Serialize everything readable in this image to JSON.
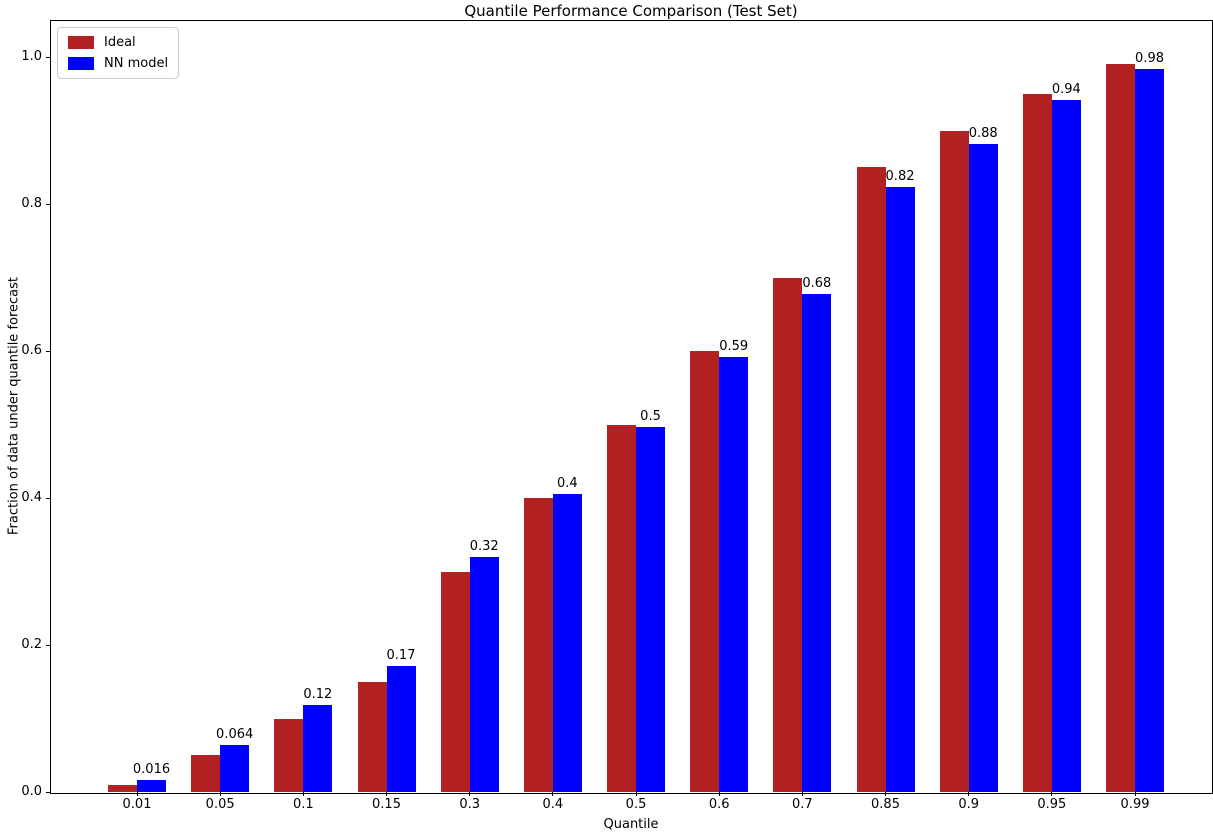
{
  "figure": {
    "title": "Quantile Performance Comparison (Test Set)",
    "xlabel": "Quantile",
    "ylabel": "Fraction of data under quantile forecast"
  },
  "legend": {
    "position": "upper left",
    "entries": [
      {
        "label": "Ideal",
        "color": "#b22222"
      },
      {
        "label": "NN model",
        "color": "#0000ff"
      }
    ]
  },
  "chart_data": {
    "type": "bar",
    "title": "Quantile Performance Comparison (Test Set)",
    "xlabel": "Quantile",
    "ylabel": "Fraction of data under quantile forecast",
    "categories": [
      "0.01",
      "0.05",
      "0.1",
      "0.15",
      "0.3",
      "0.4",
      "0.5",
      "0.6",
      "0.7",
      "0.85",
      "0.9",
      "0.95",
      "0.99"
    ],
    "series": [
      {
        "name": "Ideal",
        "color": "#b22222",
        "values": [
          0.01,
          0.05,
          0.1,
          0.15,
          0.3,
          0.4,
          0.5,
          0.6,
          0.7,
          0.85,
          0.9,
          0.95,
          0.99
        ]
      },
      {
        "name": "NN model",
        "color": "#0000ff",
        "values": [
          0.016,
          0.064,
          0.118,
          0.172,
          0.32,
          0.405,
          0.497,
          0.592,
          0.677,
          0.823,
          0.882,
          0.942,
          0.983
        ],
        "bar_labels": [
          "0.016",
          "0.064",
          "0.12",
          "0.17",
          "0.32",
          "0.4",
          "0.5",
          "0.59",
          "0.68",
          "0.82",
          "0.88",
          "0.94",
          "0.98"
        ]
      }
    ],
    "ylim": [
      0,
      1.05
    ],
    "yticks": [
      "0.0",
      "0.2",
      "0.4",
      "0.6",
      "0.8",
      "1.0"
    ],
    "grid": false,
    "legend_position": "upper left",
    "bar_labels_on_series": "NN model"
  }
}
